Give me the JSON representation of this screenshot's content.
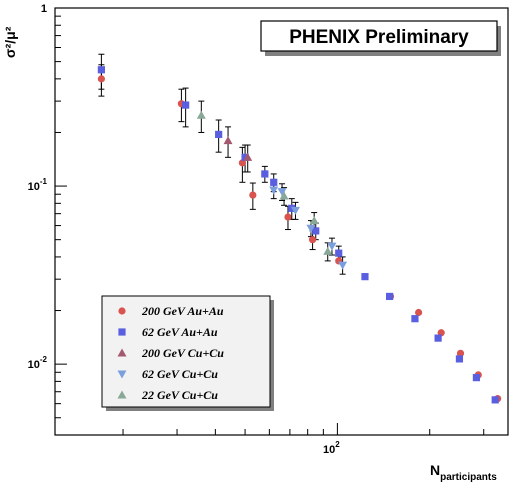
{
  "chart_data": {
    "type": "scatter",
    "title": "",
    "badge": "PHENIX Preliminary",
    "xlabel": {
      "main": "N",
      "sub": "participants"
    },
    "ylabel": {
      "main": "σ²/μ²"
    },
    "x_scale": "log",
    "y_scale": "log",
    "xlim": [
      12,
      360
    ],
    "ylim": [
      0.004,
      1
    ],
    "y_ticks": [
      {
        "value": 1,
        "label": "1"
      },
      {
        "value": 0.1,
        "label": "10-1"
      },
      {
        "value": 0.01,
        "label": "10-2"
      }
    ],
    "x_ticks": [
      {
        "value": 100,
        "label": "102"
      }
    ],
    "grid": false,
    "legend_position": "bottom-left",
    "series": [
      {
        "name": "200 GeV Au+Au",
        "marker": "circle",
        "color": "#d9534f",
        "points": [
          {
            "x": 17,
            "y": 0.4,
            "err": 0.08
          },
          {
            "x": 31,
            "y": 0.29,
            "err": 0.06
          },
          {
            "x": 49,
            "y": 0.135,
            "err": 0.03
          },
          {
            "x": 53,
            "y": 0.089,
            "err": 0.015
          },
          {
            "x": 69,
            "y": 0.067,
            "err": 0.01
          },
          {
            "x": 83,
            "y": 0.05,
            "err": 0.006
          },
          {
            "x": 101,
            "y": 0.038
          },
          {
            "x": 149,
            "y": 0.024
          },
          {
            "x": 184,
            "y": 0.0195
          },
          {
            "x": 218,
            "y": 0.015
          },
          {
            "x": 252,
            "y": 0.0115
          },
          {
            "x": 288,
            "y": 0.0087
          },
          {
            "x": 333,
            "y": 0.0064
          }
        ]
      },
      {
        "name": "62 GeV Au+Au",
        "marker": "square",
        "color": "#5a5fe0",
        "points": [
          {
            "x": 17,
            "y": 0.45,
            "err": 0.1
          },
          {
            "x": 32,
            "y": 0.285,
            "err": 0.07
          },
          {
            "x": 41,
            "y": 0.195,
            "err": 0.04
          },
          {
            "x": 50,
            "y": 0.145,
            "err": 0.025
          },
          {
            "x": 58,
            "y": 0.117,
            "err": 0.012
          },
          {
            "x": 62,
            "y": 0.105,
            "err": 0.012
          },
          {
            "x": 71,
            "y": 0.075,
            "err": 0.01
          },
          {
            "x": 85,
            "y": 0.056,
            "err": 0.006
          },
          {
            "x": 101,
            "y": 0.042,
            "err": 0.004
          },
          {
            "x": 123,
            "y": 0.031
          },
          {
            "x": 148,
            "y": 0.024
          },
          {
            "x": 179,
            "y": 0.018
          },
          {
            "x": 213,
            "y": 0.014
          },
          {
            "x": 250,
            "y": 0.0107
          },
          {
            "x": 284,
            "y": 0.0084
          },
          {
            "x": 327,
            "y": 0.0063
          }
        ]
      },
      {
        "name": "200 GeV Cu+Cu",
        "marker": "triangle-up",
        "color": "#a45a6e",
        "points": [
          {
            "x": 44,
            "y": 0.18,
            "err": 0.035
          },
          {
            "x": 51,
            "y": 0.145,
            "err": 0.025
          }
        ]
      },
      {
        "name": "62 GeV Cu+Cu",
        "marker": "triangle-down",
        "color": "#7b9fdc",
        "points": [
          {
            "x": 62,
            "y": 0.095,
            "err": 0.01
          },
          {
            "x": 66,
            "y": 0.093,
            "err": 0.01
          },
          {
            "x": 73,
            "y": 0.073,
            "err": 0.008
          },
          {
            "x": 82,
            "y": 0.058,
            "err": 0.006
          },
          {
            "x": 96,
            "y": 0.046,
            "err": 0.005
          },
          {
            "x": 104,
            "y": 0.036,
            "err": 0.004
          }
        ]
      },
      {
        "name": "22 GeV Cu+Cu",
        "marker": "triangle-up",
        "color": "#88a898",
        "points": [
          {
            "x": 36,
            "y": 0.25,
            "err": 0.05
          },
          {
            "x": 67,
            "y": 0.088,
            "err": 0.01
          },
          {
            "x": 84,
            "y": 0.064,
            "err": 0.007
          },
          {
            "x": 93,
            "y": 0.043,
            "err": 0.005
          }
        ]
      }
    ]
  }
}
